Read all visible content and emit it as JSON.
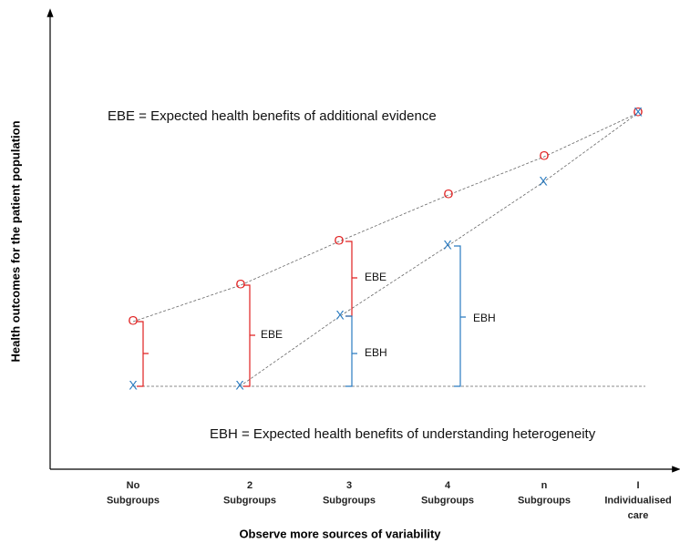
{
  "y_axis_label": "Health outcomes for the patient population",
  "x_axis_label": "Observe more sources of variability",
  "categories": [
    [
      "No",
      "Subgroups"
    ],
    [
      "2",
      "Subgroups"
    ],
    [
      "3",
      "Subgroups"
    ],
    [
      "4",
      "Subgroups"
    ],
    [
      "n",
      "Subgroups"
    ],
    [
      "I",
      "Individualised",
      "care"
    ]
  ],
  "ebe_definition": "EBE = Expected health benefits of additional evidence",
  "ebh_definition": "EBH = Expected health benefits of understanding heterogeneity",
  "o_marker": "O",
  "x_marker": "X",
  "ebe_label": "EBE",
  "ebh_label": "EBH"
}
